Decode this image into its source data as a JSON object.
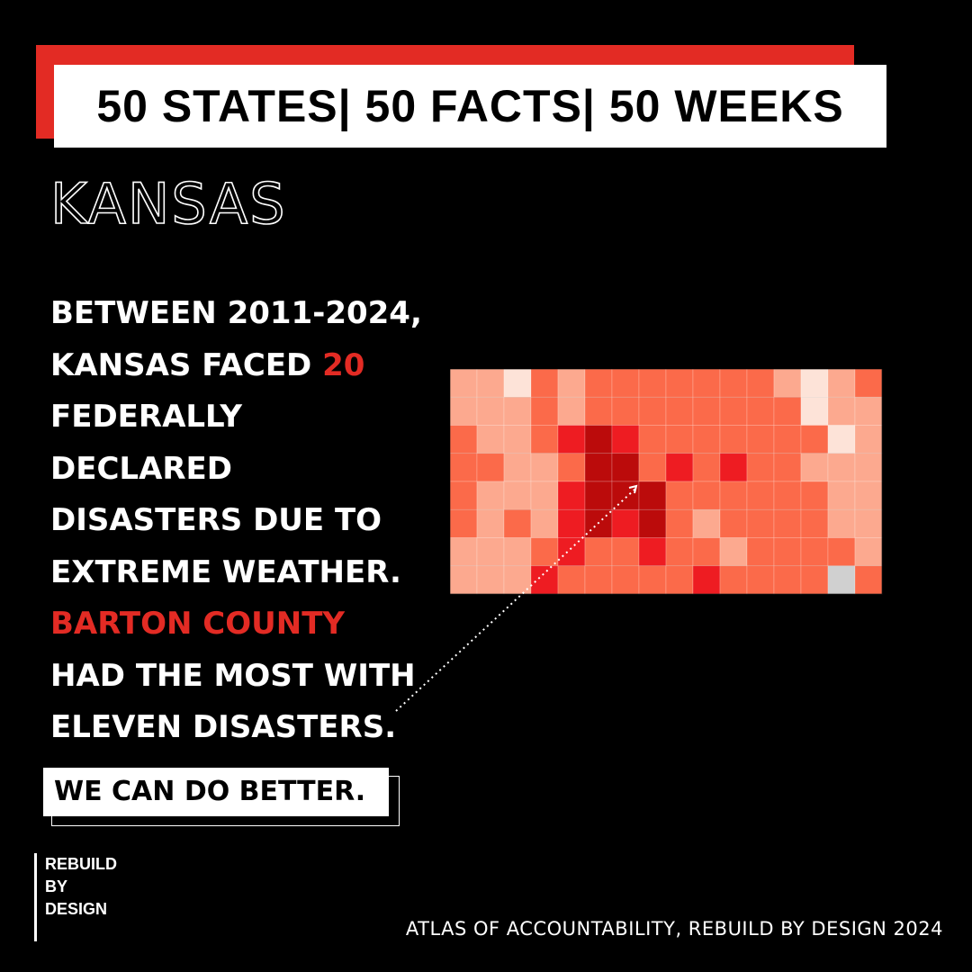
{
  "header": {
    "title": "50 STATES| 50 FACTS| 50 WEEKS"
  },
  "state": {
    "name": "KANSAS"
  },
  "fact": {
    "line1": "BETWEEN 2011-2024,",
    "line2_prefix": "KANSAS FACED ",
    "line2_number": "20",
    "line3": "FEDERALLY",
    "line4": "DECLARED",
    "line5": "DISASTERS DUE TO",
    "line6": "EXTREME WEATHER.",
    "highlight": "BARTON COUNTY",
    "line8": "HAD THE MOST WITH",
    "line9": "ELEVEN DISASTERS."
  },
  "cta": {
    "label": "WE CAN DO BETTER."
  },
  "logo": {
    "line1": "REBUILD",
    "line2": "BY",
    "line3": "DESIGN"
  },
  "footer": {
    "credit": "ATLAS OF ACCOUNTABILITY, REBUILD BY DESIGN 2024"
  },
  "colors": {
    "accent_red": "#e32b24",
    "background": "#000000",
    "map_scale": [
      "#fde3d8",
      "#fca98f",
      "#fb6a4a",
      "#ee1c22",
      "#bb0b0b",
      "#d0d0d0"
    ]
  }
}
